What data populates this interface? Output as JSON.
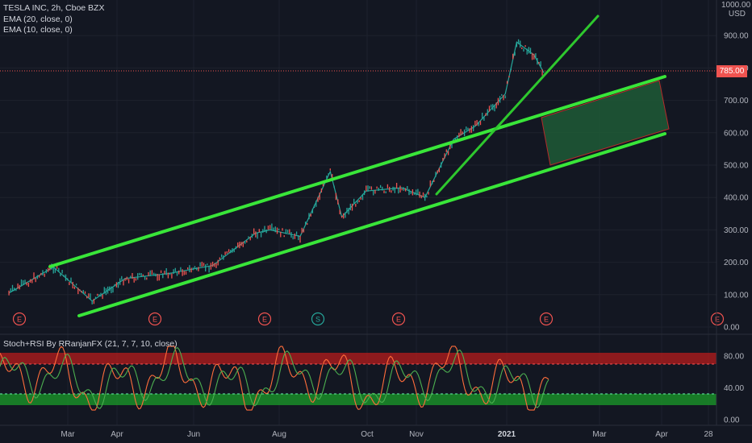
{
  "legend": {
    "symbol": "TESLA INC, 2h, Cboe BZX",
    "ema20": "EMA (20, close, 0)",
    "ema10": "EMA (10, close, 0)"
  },
  "oscillator": {
    "title": "Stoch+RSI By RRanjanFX (21, 7, 7, 10, close)",
    "yticks": [
      "80.00",
      "40.00",
      "0.00"
    ],
    "upper_zone": [
      73,
      82
    ],
    "lower_zone": [
      20,
      29
    ],
    "line_colors": {
      "k": "#4caf50",
      "d": "#ff6d3b"
    }
  },
  "price_axis": {
    "currency_top": "1000.00",
    "currency": "USD",
    "ticks": [
      "900.00",
      "800.00",
      "700.00",
      "600.00",
      "500.00",
      "400.00",
      "300.00",
      "200.00",
      "100.00",
      "0.00"
    ],
    "last_price": "785.00"
  },
  "time_axis": {
    "labels": [
      "Mar",
      "Apr",
      "Jun",
      "Aug",
      "Oct",
      "Nov",
      "2021",
      "Mar",
      "Apr",
      "28"
    ]
  },
  "events": [
    "E",
    "E",
    "E",
    "S",
    "E",
    "E",
    "E"
  ],
  "colors": {
    "background": "#131722",
    "channel": "#39e639",
    "trendline": "#2ec82e",
    "candle_up": "#26a69a",
    "candle_down": "#ef5350",
    "price_line": "#ef5350",
    "target_box_fill": "#1e5a36",
    "target_box_stroke": "#b52a2a",
    "overbought_fill": "#b71c1c",
    "oversold_fill": "#1b9e2a"
  },
  "chart_data": {
    "type": "line",
    "title": "TESLA INC, 2h, Cboe BZX",
    "xlabel": "",
    "ylabel": "",
    "ylim": [
      0,
      1000
    ],
    "x": [
      "2020-01-20",
      "2020-02-20",
      "2020-03-18",
      "2020-04-10",
      "2020-05-10",
      "2020-06-10",
      "2020-07-10",
      "2020-07-20",
      "2020-08-10",
      "2020-08-31",
      "2020-09-08",
      "2020-09-25",
      "2020-10-20",
      "2020-11-05",
      "2020-11-25",
      "2020-12-10",
      "2020-12-31",
      "2021-01-08",
      "2021-01-20",
      "2021-01-27"
    ],
    "series": [
      {
        "values": [
          105,
          185,
          80,
          150,
          165,
          190,
          290,
          300,
          280,
          480,
          340,
          420,
          430,
          400,
          580,
          620,
          720,
          880,
          840,
          785
        ]
      }
    ]
  }
}
